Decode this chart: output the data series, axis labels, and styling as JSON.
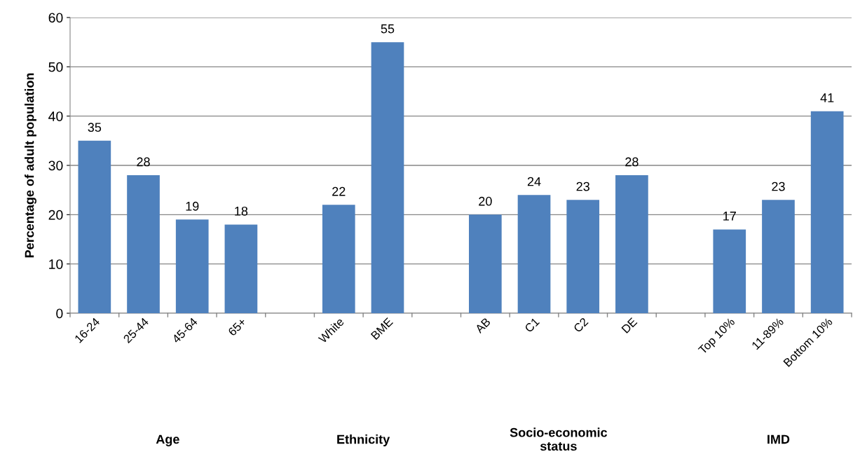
{
  "chart_data": {
    "type": "bar",
    "ylabel": "Percentage of adult population",
    "categories": [
      "16-24",
      "25-44",
      "45-64",
      "65+",
      null,
      "White",
      "BME",
      null,
      "AB",
      "C1",
      "C2",
      "DE",
      null,
      "Top 10%",
      "11-89%",
      "Bottom 10%"
    ],
    "values": [
      35,
      28,
      19,
      18,
      null,
      22,
      55,
      null,
      20,
      24,
      23,
      28,
      null,
      17,
      23,
      41
    ],
    "color": "#4f81bd",
    "ylim": [
      0,
      60
    ],
    "yticks": [
      0,
      10,
      20,
      30,
      40,
      50,
      60
    ],
    "grid": "y",
    "data_labels": true,
    "annotations": [
      "Age",
      "Ethnicity",
      "Socio-economic\nstatus",
      "IMD"
    ]
  }
}
